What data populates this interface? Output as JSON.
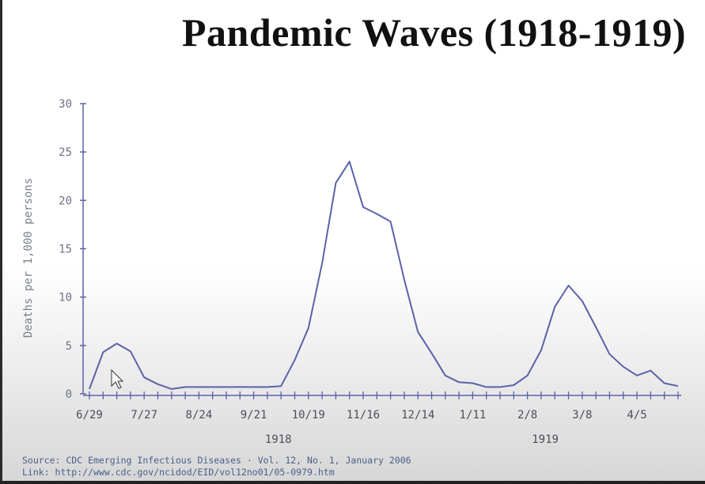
{
  "chart_data": {
    "type": "line",
    "title": "Pandemic Waves (1918-1919)",
    "ylabel": "Deaths per 1,000 persons",
    "ylim": [
      0,
      30
    ],
    "yticks": [
      0,
      5,
      10,
      15,
      20,
      25,
      30
    ],
    "xticks": [
      "6/29",
      "7/27",
      "8/24",
      "9/21",
      "10/19",
      "11/16",
      "12/14",
      "1/11",
      "2/8",
      "3/8",
      "4/5"
    ],
    "year_labels": [
      "1918",
      "1919"
    ],
    "grid": false,
    "legend": "none",
    "line_color": "#5a63a8",
    "series": [
      {
        "x": [
          "6/29",
          "7/6",
          "7/13",
          "7/20",
          "7/27",
          "8/3",
          "8/10",
          "8/17",
          "8/24",
          "8/31",
          "9/7",
          "9/14",
          "9/21",
          "9/28",
          "10/5",
          "10/12",
          "10/19",
          "10/26",
          "11/2",
          "11/9",
          "11/16",
          "11/23",
          "11/30",
          "12/7",
          "12/14",
          "12/21",
          "12/28",
          "1/4",
          "1/11",
          "1/18",
          "1/25",
          "2/1",
          "2/8",
          "2/15",
          "2/22",
          "3/1",
          "3/8",
          "3/15",
          "3/22",
          "3/29",
          "4/5",
          "4/12",
          "4/19",
          "4/26"
        ],
        "values": [
          0.5,
          4.3,
          5.2,
          4.4,
          1.7,
          1.0,
          0.5,
          0.7,
          0.7,
          0.7,
          0.7,
          0.7,
          0.7,
          0.7,
          0.8,
          3.5,
          6.8,
          13.5,
          21.8,
          24.0,
          19.3,
          18.6,
          17.8,
          11.8,
          6.4,
          4.2,
          1.9,
          1.2,
          1.1,
          0.7,
          0.7,
          0.9,
          1.9,
          4.5,
          9.0,
          11.2,
          9.6,
          6.9,
          4.1,
          2.8,
          1.9,
          2.4,
          1.1,
          0.8
        ]
      }
    ]
  },
  "source": {
    "line1": "Source: CDC Emerging Infectious Diseases · Vol. 12, No. 1, January 2006",
    "line2": "Link: http://www.cdc.gov/ncidod/EID/vol12no01/05-0979.htm"
  }
}
